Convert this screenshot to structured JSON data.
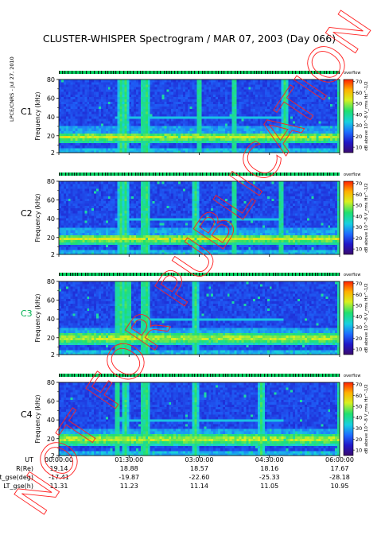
{
  "title": "CLUSTER-WHISPER Spectrogram / MAR 07, 2003 (Day 066)",
  "credit": "LPCE/CNRS - Jul 27, 2010",
  "watermark": "NOT FOR PUBLICATION",
  "chart_data": {
    "type": "heatmap",
    "x_ticks": [
      "00:00:00",
      "01:30:00",
      "03:00:00",
      "04:30:00",
      "06:00:00"
    ],
    "ylabel": "Frequency (kHz)",
    "yticks": [
      2,
      20,
      40,
      60,
      80
    ],
    "ylim": [
      2,
      80
    ],
    "colorbar": {
      "label": "dB above 10^-8 V_rms Hz^-1/2",
      "ticks": [
        10,
        20,
        30,
        40,
        50,
        60,
        70
      ],
      "range": [
        5,
        72
      ],
      "header": "overflow",
      "colors": [
        "#3a0a6e",
        "#2018c8",
        "#1e6cff",
        "#18d0e0",
        "#20e070",
        "#d8f020",
        "#ffb000",
        "#ff2000"
      ]
    },
    "panels": [
      {
        "name": "C1",
        "name_color": "#000000",
        "emission_band_kHz": [
          12,
          24
        ],
        "band_peak_kHz": 19,
        "vertical_bursts_hhmm": [
          "01:20",
          "01:25",
          "01:48",
          "01:53",
          "03:00",
          "03:45",
          "04:50",
          "06:00"
        ],
        "cutoff_line_kHz": 40
      },
      {
        "name": "C2",
        "name_color": "#000000",
        "emission_band_kHz": [
          12,
          24
        ],
        "band_peak_kHz": 19,
        "vertical_bursts_hhmm": [
          "01:20",
          "01:25",
          "01:48",
          "01:53",
          "02:55",
          "03:45",
          "04:45",
          "06:00"
        ],
        "cutoff_line_kHz": 40
      },
      {
        "name": "C3",
        "name_color": "#00b050",
        "emission_band_kHz": [
          12,
          25
        ],
        "band_peak_kHz": 20,
        "vertical_bursts_hhmm": [
          "01:15",
          "01:20",
          "01:25",
          "01:30",
          "01:48",
          "01:53",
          "02:55",
          "06:00"
        ],
        "cutoff_line_kHz": 40
      },
      {
        "name": "C4",
        "name_color": "#000000",
        "emission_band_kHz": [
          12,
          25
        ],
        "band_peak_kHz": 20,
        "vertical_bursts_hhmm": [
          "01:15",
          "01:25",
          "01:48",
          "01:53",
          "02:55",
          "04:20",
          "06:00"
        ],
        "cutoff_line_kHz": 40
      }
    ],
    "ephemeris": {
      "labels": [
        "UT",
        "R(Re)",
        "Lat_gse(deg)",
        "LT_gse(h)"
      ],
      "times": [
        "00:00:00",
        "01:30:00",
        "03:00:00",
        "04:30:00",
        "06:00:00"
      ],
      "r_re": [
        "19.14",
        "18.88",
        "18.57",
        "18.16",
        "17.67"
      ],
      "lat_gse_deg": [
        "-17.41",
        "-19.87",
        "-22.60",
        "-25.33",
        "-28.18"
      ],
      "lt_gse_h": [
        "11.31",
        "11.23",
        "11.14",
        "11.05",
        "10.95"
      ]
    }
  }
}
